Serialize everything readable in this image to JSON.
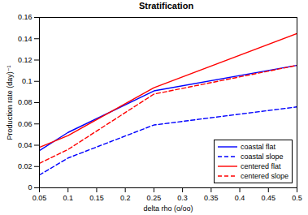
{
  "chart_data": {
    "type": "line",
    "title": "Stratification",
    "x_label": "delta rho (o/oo)",
    "y_label": "Production rate (day)⁻¹",
    "x": [
      0.05,
      0.1,
      0.25,
      0.5
    ],
    "series": [
      {
        "name": "coastal flat",
        "color": "#0000ff",
        "line_style": "solid",
        "values": [
          0.035,
          0.052,
          0.091,
          0.115
        ]
      },
      {
        "name": "coastal slope",
        "color": "#0000ff",
        "line_style": "dashed",
        "values": [
          0.012,
          0.028,
          0.059,
          0.076
        ]
      },
      {
        "name": "centered flat",
        "color": "#ff0000",
        "line_style": "solid",
        "values": [
          0.038,
          0.049,
          0.094,
          0.145
        ]
      },
      {
        "name": "centered slope",
        "color": "#ff0000",
        "line_style": "dashed",
        "values": [
          0.023,
          0.036,
          0.088,
          0.115
        ]
      }
    ],
    "xlim": [
      0.05,
      0.5
    ],
    "xticks": [
      0.05,
      0.1,
      0.15,
      0.2,
      0.25,
      0.3,
      0.35,
      0.4,
      0.45,
      0.5
    ],
    "ylim": [
      0,
      0.16
    ],
    "yticks": [
      0,
      0.02,
      0.04,
      0.06,
      0.08,
      0.1,
      0.12,
      0.14,
      0.16
    ],
    "grid": false,
    "legend": "lower right"
  }
}
